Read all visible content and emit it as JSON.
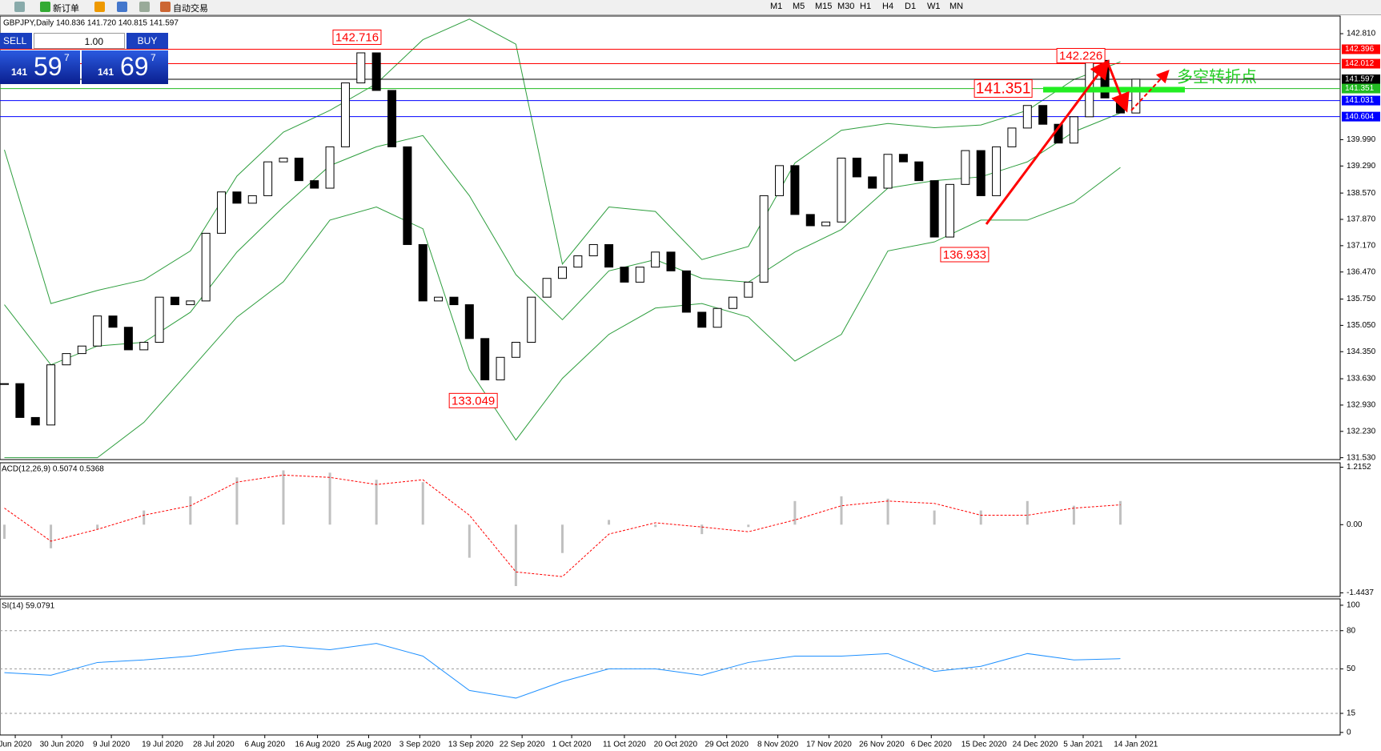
{
  "toolbar": {
    "new_order": "新订单",
    "auto_trading": "自动交易",
    "timeframes": [
      "M1",
      "M5",
      "M15",
      "M30",
      "H1",
      "H4",
      "D1",
      "W1",
      "MN"
    ]
  },
  "trade_panel": {
    "sell": "SELL",
    "buy": "BUY",
    "lots": "1.00",
    "sell_big": "141",
    "sell_pips": "59",
    "sell_frac": "7",
    "buy_big": "141",
    "buy_pips": "69",
    "buy_frac": "7"
  },
  "chart_data": {
    "type": "candlestick",
    "title": "GBPJPY,Daily 140.836 141.720 140.815 141.597",
    "closes": [
      133.5,
      132.6,
      132.4,
      134.0,
      134.3,
      134.5,
      135.3,
      135.0,
      134.4,
      134.6,
      135.8,
      135.6,
      135.7,
      137.5,
      138.6,
      138.3,
      138.5,
      139.4,
      139.5,
      138.9,
      138.7,
      139.8,
      141.5,
      142.3,
      141.3,
      139.8,
      137.2,
      135.7,
      135.8,
      135.6,
      134.7,
      133.6,
      134.2,
      134.6,
      135.8,
      136.3,
      136.6,
      136.9,
      137.2,
      136.6,
      136.2,
      136.6,
      137.0,
      136.5,
      135.4,
      135.0,
      135.5,
      135.8,
      136.2,
      138.5,
      139.3,
      138.0,
      137.7,
      137.8,
      139.5,
      139.0,
      138.7,
      139.6,
      139.4,
      138.9,
      137.4,
      138.8,
      139.7,
      138.5,
      139.8,
      140.3,
      140.9,
      140.4,
      139.9,
      140.6,
      142.1,
      141.1,
      140.7,
      141.6
    ],
    "xlim": [
      -0.284,
      86.18
    ],
    "xticks": [
      {
        "value": 0.7,
        "label": "Jun 2020"
      },
      {
        "value": 3.7,
        "label": "30 Jun 2020"
      },
      {
        "value": 6.9,
        "label": "9 Jul 2020"
      },
      {
        "value": 10.2,
        "label": "19 Jul 2020"
      },
      {
        "value": 13.5,
        "label": "28 Jul 2020"
      },
      {
        "value": 16.8,
        "label": "6 Aug 2020"
      },
      {
        "value": 20.2,
        "label": "16 Aug 2020"
      },
      {
        "value": 23.5,
        "label": "25 Aug 2020"
      },
      {
        "value": 26.8,
        "label": "3 Sep 2020"
      },
      {
        "value": 30.1,
        "label": "13 Sep 2020"
      },
      {
        "value": 33.4,
        "label": "22 Sep 2020"
      },
      {
        "value": 36.6,
        "label": "1 Oct 2020"
      },
      {
        "value": 40,
        "label": "11 Oct 2020"
      },
      {
        "value": 43.3,
        "label": "20 Oct 2020"
      },
      {
        "value": 46.6,
        "label": "29 Oct 2020"
      },
      {
        "value": 49.9,
        "label": "8 Nov 2020"
      },
      {
        "value": 53.2,
        "label": "17 Nov 2020"
      },
      {
        "value": 56.6,
        "label": "26 Nov 2020"
      },
      {
        "value": 59.8,
        "label": "6 Dec 2020"
      },
      {
        "value": 63.2,
        "label": "15 Dec 2020"
      },
      {
        "value": 66.5,
        "label": "24 Dec 2020"
      },
      {
        "value": 69.6,
        "label": "5 Jan 2021"
      },
      {
        "value": 73,
        "label": "14 Jan 2021"
      }
    ],
    "ylim": [
      131.48,
      143.28
    ],
    "yticks": [
      {
        "value": 142.81,
        "label": "142.810"
      },
      {
        "value": 139.99,
        "label": "139.990"
      },
      {
        "value": 139.29,
        "label": "139.290"
      },
      {
        "value": 138.57,
        "label": "138.570"
      },
      {
        "value": 137.87,
        "label": "137.870"
      },
      {
        "value": 137.17,
        "label": "137.170"
      },
      {
        "value": 136.47,
        "label": "136.470"
      },
      {
        "value": 135.75,
        "label": "135.750"
      },
      {
        "value": 135.05,
        "label": "135.050"
      },
      {
        "value": 134.35,
        "label": "134.350"
      },
      {
        "value": 133.63,
        "label": "133.630"
      },
      {
        "value": 132.93,
        "label": "132.930"
      },
      {
        "value": 132.23,
        "label": "132.230"
      },
      {
        "value": 131.53,
        "label": "131.530"
      }
    ],
    "price_lines": [
      {
        "value": 142.396,
        "label": "142.396",
        "color": "#ff0000"
      },
      {
        "value": 142.012,
        "label": "142.012",
        "color": "#ff0000"
      },
      {
        "value": 141.597,
        "label": "141.597",
        "color": "#000000"
      },
      {
        "value": 141.351,
        "label": "141.351",
        "color": "#22bb22"
      },
      {
        "value": 141.031,
        "label": "141.031",
        "color": "#0000ff"
      },
      {
        "value": 140.604,
        "label": "140.604",
        "color": "#0000ff"
      }
    ],
    "annotations": [
      {
        "label": "142.716",
        "value": 142.716,
        "x": 24.3
      },
      {
        "label": "142.226",
        "value": 142.226,
        "x": 71.0
      },
      {
        "label": "141.351",
        "value": 141.351,
        "x": 66.3
      },
      {
        "label": "136.933",
        "value": 136.933,
        "x": 63.5
      },
      {
        "label": "133.049",
        "value": 133.049,
        "x": 31.8
      }
    ],
    "note": "多空转折点",
    "bollinger": {
      "color": "#2e9e3e",
      "x": [
        0,
        3,
        6,
        9,
        12,
        15,
        18,
        21,
        24,
        27,
        30,
        33,
        36,
        39,
        42,
        45,
        48,
        51,
        54,
        57,
        60,
        63,
        66,
        69,
        72
      ],
      "upper": [
        139.72,
        135.63,
        135.98,
        136.26,
        137.03,
        139.02,
        140.19,
        140.77,
        141.48,
        142.65,
        143.2,
        142.53,
        136.68,
        138.2,
        138.08,
        136.8,
        137.15,
        139.37,
        140.24,
        140.42,
        140.31,
        140.38,
        140.77,
        141.59,
        142.06
      ],
      "middle": [
        135.6,
        134.0,
        134.5,
        134.6,
        135.4,
        137.0,
        138.2,
        139.3,
        139.8,
        140.1,
        138.5,
        136.4,
        135.2,
        136.5,
        136.8,
        136.3,
        136.2,
        137.0,
        137.6,
        138.7,
        138.9,
        139.0,
        139.4,
        140.2,
        140.7
      ],
      "lower": [
        131.53,
        131.53,
        131.53,
        132.47,
        133.87,
        135.27,
        136.21,
        137.85,
        138.2,
        137.62,
        133.87,
        132.0,
        133.64,
        134.81,
        135.51,
        135.63,
        135.27,
        134.1,
        134.81,
        137.03,
        137.27,
        137.85,
        137.85,
        138.32,
        139.25
      ]
    },
    "macd": {
      "title": "ACD(12,26,9) 0.5074 0.5368",
      "ylim": [
        -1.52,
        1.31
      ],
      "yticks": [
        1.2152,
        {
          "value": 0,
          "label": "0.00"
        },
        -1.4437
      ],
      "x": [
        0,
        3,
        6,
        9,
        12,
        15,
        18,
        21,
        24,
        27,
        30,
        33,
        36,
        39,
        42,
        45,
        48,
        51,
        54,
        57,
        60,
        63,
        66,
        69,
        72
      ],
      "histogram": [
        -0.3,
        -0.5,
        -0.1,
        0.3,
        0.6,
        1.0,
        1.15,
        1.1,
        0.95,
        0.9,
        -0.7,
        -1.3,
        -0.6,
        0.1,
        -0.05,
        -0.2,
        -0.05,
        0.5,
        0.6,
        0.55,
        0.3,
        0.3,
        0.5,
        0.4,
        0.5
      ],
      "signal": [
        0.35,
        -0.35,
        -0.1,
        0.2,
        0.4,
        0.9,
        1.05,
        1.0,
        0.85,
        0.95,
        0.2,
        -1.0,
        -1.1,
        -0.2,
        0.04,
        -0.05,
        -0.15,
        0.1,
        0.4,
        0.5,
        0.45,
        0.2,
        0.2,
        0.35,
        0.42
      ],
      "color": "#c0c0c0",
      "signal_color": "#ff0000"
    },
    "rsi": {
      "title": "SI(14) 59.0791",
      "ylim": [
        -2,
        105
      ],
      "yticks": [
        100,
        80,
        50,
        15,
        0
      ],
      "levels": [
        80,
        50,
        15
      ],
      "color": "#1e90ff",
      "x": [
        0,
        3,
        6,
        9,
        12,
        15,
        18,
        21,
        24,
        27,
        30,
        33,
        36,
        39,
        42,
        45,
        48,
        51,
        54,
        57,
        60,
        63,
        66,
        69,
        72
      ],
      "values": [
        47,
        45,
        55,
        57,
        60,
        65,
        68,
        65,
        70,
        60,
        33,
        27,
        40,
        50,
        50,
        45,
        55,
        60,
        60,
        62,
        48,
        52,
        62,
        57,
        58
      ]
    }
  }
}
